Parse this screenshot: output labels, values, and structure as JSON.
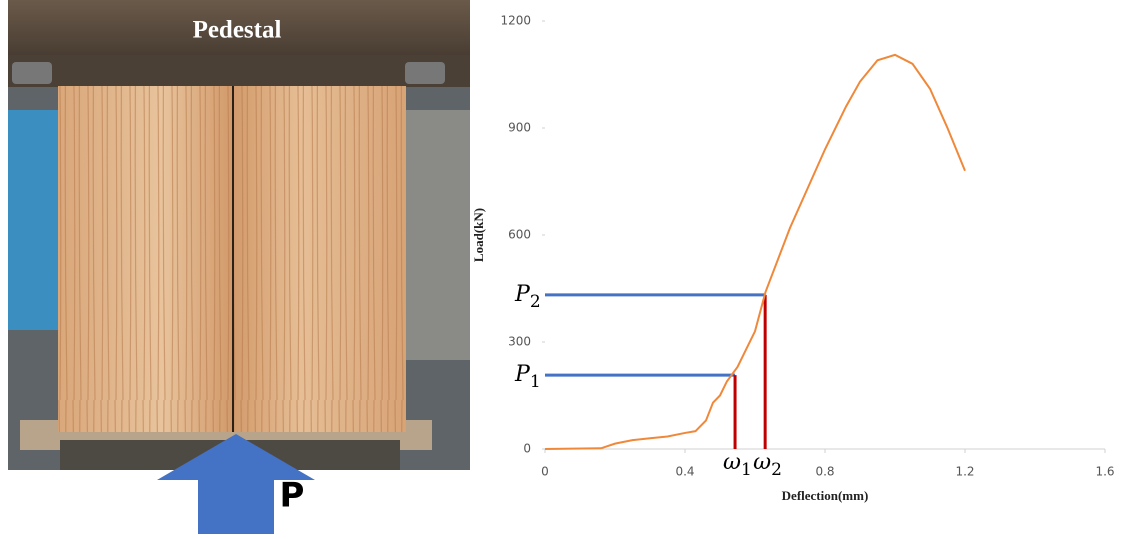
{
  "photo": {
    "label": "Pedestal",
    "arrow_label": "P"
  },
  "chart_data": {
    "type": "line",
    "xlabel": "Deflection(mm)",
    "ylabel": "Load(kN)",
    "xlim": [
      0,
      1.6
    ],
    "xticks": [
      0,
      0.4,
      0.8,
      1.2,
      1.6
    ],
    "ylim": [
      0,
      1200
    ],
    "yticks": [
      0,
      300,
      600,
      900,
      1200
    ],
    "grid": false,
    "series": [
      {
        "color": "#f0883a",
        "x": [
          0,
          0.16,
          0.2,
          0.25,
          0.3,
          0.35,
          0.4,
          0.43,
          0.46,
          0.48,
          0.5,
          0.52,
          0.55,
          0.6,
          0.63,
          0.7,
          0.8,
          0.86,
          0.9,
          0.95,
          1.0,
          1.05,
          1.1,
          1.15,
          1.2
        ],
        "values": [
          0,
          2,
          15,
          25,
          30,
          35,
          45,
          50,
          80,
          130,
          150,
          190,
          230,
          330,
          440,
          620,
          840,
          960,
          1030,
          1090,
          1105,
          1080,
          1010,
          900,
          780
        ]
      }
    ],
    "markers": [
      {
        "load_label": "P",
        "load_sub": "1",
        "deflection_label": "ω",
        "deflection_sub": "1",
        "x": 0.543,
        "y": 207
      },
      {
        "load_label": "P",
        "load_sub": "2",
        "deflection_label": "ω",
        "deflection_sub": "2",
        "x": 0.629,
        "y": 432
      }
    ],
    "load_line_color": "#4472c4",
    "deflection_line_color": "#c00000"
  }
}
